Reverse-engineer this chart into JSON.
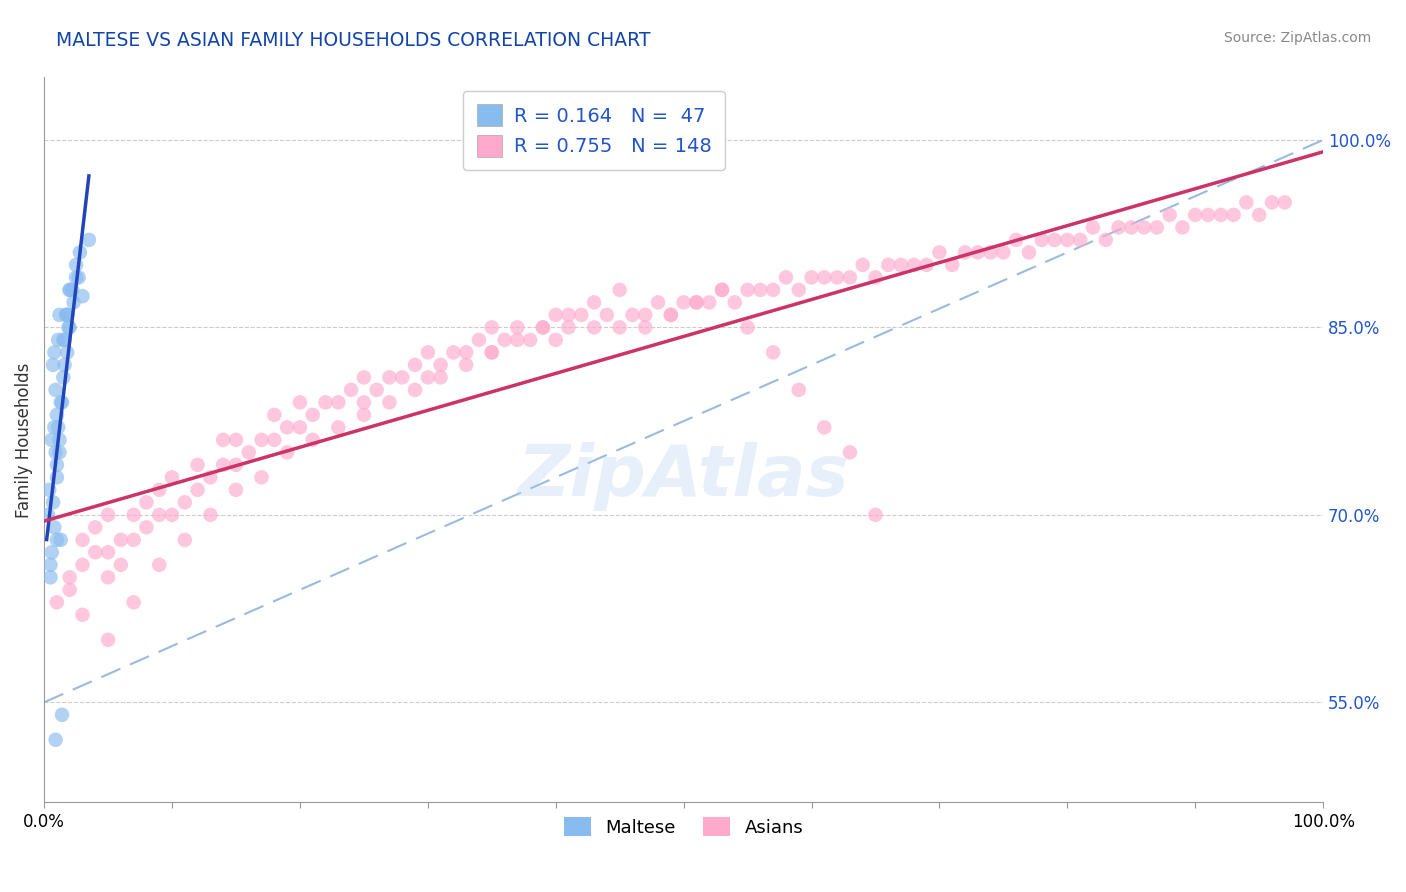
{
  "title": "MALTESE VS ASIAN FAMILY HOUSEHOLDS CORRELATION CHART",
  "source": "Source: ZipAtlas.com",
  "ylabel": "Family Households",
  "watermark": "ZipAtlas",
  "maltese_color": "#88bbee",
  "asian_color": "#ffaacc",
  "maltese_line_color": "#2244bb",
  "asian_line_color": "#cc3366",
  "ref_line_color": "#99bbdd",
  "title_color": "#1144aa",
  "blue_text_color": "#2255cc",
  "right_tick_color": "#2255cc",
  "right_yticks": [
    55.0,
    70.0,
    85.0,
    100.0
  ],
  "R_maltese": 0.164,
  "N_maltese": 47,
  "R_asian": 0.755,
  "N_asian": 148,
  "xlim": [
    0,
    100
  ],
  "ylim": [
    47,
    105
  ],
  "maltese_x": [
    0.3,
    0.5,
    0.5,
    0.6,
    0.7,
    0.7,
    0.8,
    0.8,
    0.9,
    0.9,
    1.0,
    1.0,
    1.0,
    1.1,
    1.1,
    1.2,
    1.2,
    1.3,
    1.3,
    1.4,
    1.5,
    1.5,
    1.6,
    1.7,
    1.8,
    1.8,
    1.9,
    2.0,
    2.0,
    2.2,
    2.3,
    2.5,
    2.5,
    2.7,
    2.8,
    3.0,
    3.5,
    0.4,
    0.6,
    0.8,
    1.0,
    1.2,
    1.6,
    1.8,
    2.0,
    0.9,
    1.4
  ],
  "maltese_y": [
    70.0,
    65.0,
    66.0,
    76.0,
    71.0,
    82.0,
    77.0,
    83.0,
    75.0,
    80.0,
    68.0,
    73.0,
    78.0,
    77.0,
    84.0,
    75.0,
    86.0,
    68.0,
    79.0,
    79.0,
    81.0,
    84.0,
    82.0,
    86.0,
    83.0,
    86.0,
    85.0,
    85.0,
    88.0,
    88.0,
    87.0,
    89.0,
    90.0,
    89.0,
    91.0,
    87.5,
    92.0,
    72.0,
    67.0,
    69.0,
    74.0,
    76.0,
    84.0,
    86.0,
    88.0,
    52.0,
    54.0
  ],
  "asian_x": [
    1,
    2,
    2,
    3,
    3,
    4,
    4,
    5,
    5,
    5,
    6,
    6,
    7,
    7,
    8,
    8,
    9,
    9,
    10,
    10,
    11,
    12,
    12,
    13,
    14,
    14,
    15,
    15,
    16,
    17,
    18,
    18,
    19,
    20,
    20,
    21,
    22,
    23,
    24,
    25,
    25,
    26,
    27,
    28,
    29,
    30,
    30,
    31,
    32,
    33,
    34,
    35,
    35,
    36,
    37,
    38,
    39,
    40,
    40,
    41,
    42,
    43,
    44,
    45,
    46,
    47,
    48,
    49,
    50,
    51,
    52,
    53,
    54,
    55,
    56,
    57,
    58,
    59,
    60,
    61,
    62,
    63,
    64,
    65,
    66,
    67,
    68,
    69,
    70,
    71,
    72,
    73,
    74,
    75,
    76,
    77,
    78,
    79,
    80,
    81,
    82,
    83,
    84,
    85,
    86,
    87,
    88,
    89,
    90,
    91,
    92,
    93,
    94,
    95,
    96,
    97,
    3,
    5,
    7,
    9,
    11,
    13,
    15,
    17,
    19,
    21,
    23,
    25,
    27,
    29,
    31,
    33,
    35,
    37,
    39,
    41,
    43,
    45,
    47,
    49,
    51,
    53,
    55,
    57,
    59,
    61,
    63,
    65
  ],
  "asian_y": [
    63,
    64,
    65,
    66,
    68,
    67,
    69,
    65,
    67,
    70,
    66,
    68,
    68,
    70,
    69,
    71,
    70,
    72,
    70,
    73,
    71,
    72,
    74,
    73,
    74,
    76,
    74,
    76,
    75,
    76,
    76,
    78,
    77,
    77,
    79,
    78,
    79,
    79,
    80,
    79,
    81,
    80,
    81,
    81,
    82,
    81,
    83,
    82,
    83,
    83,
    84,
    83,
    85,
    84,
    85,
    84,
    85,
    84,
    86,
    85,
    86,
    85,
    86,
    85,
    86,
    86,
    87,
    86,
    87,
    87,
    87,
    88,
    87,
    88,
    88,
    88,
    89,
    88,
    89,
    89,
    89,
    89,
    90,
    89,
    90,
    90,
    90,
    90,
    91,
    90,
    91,
    91,
    91,
    91,
    92,
    91,
    92,
    92,
    92,
    92,
    93,
    92,
    93,
    93,
    93,
    93,
    94,
    93,
    94,
    94,
    94,
    94,
    95,
    94,
    95,
    95,
    62,
    60,
    63,
    66,
    68,
    70,
    72,
    73,
    75,
    76,
    77,
    78,
    79,
    80,
    81,
    82,
    83,
    84,
    85,
    86,
    87,
    88,
    85,
    86,
    87,
    88,
    85,
    83,
    80,
    77,
    75,
    70
  ]
}
